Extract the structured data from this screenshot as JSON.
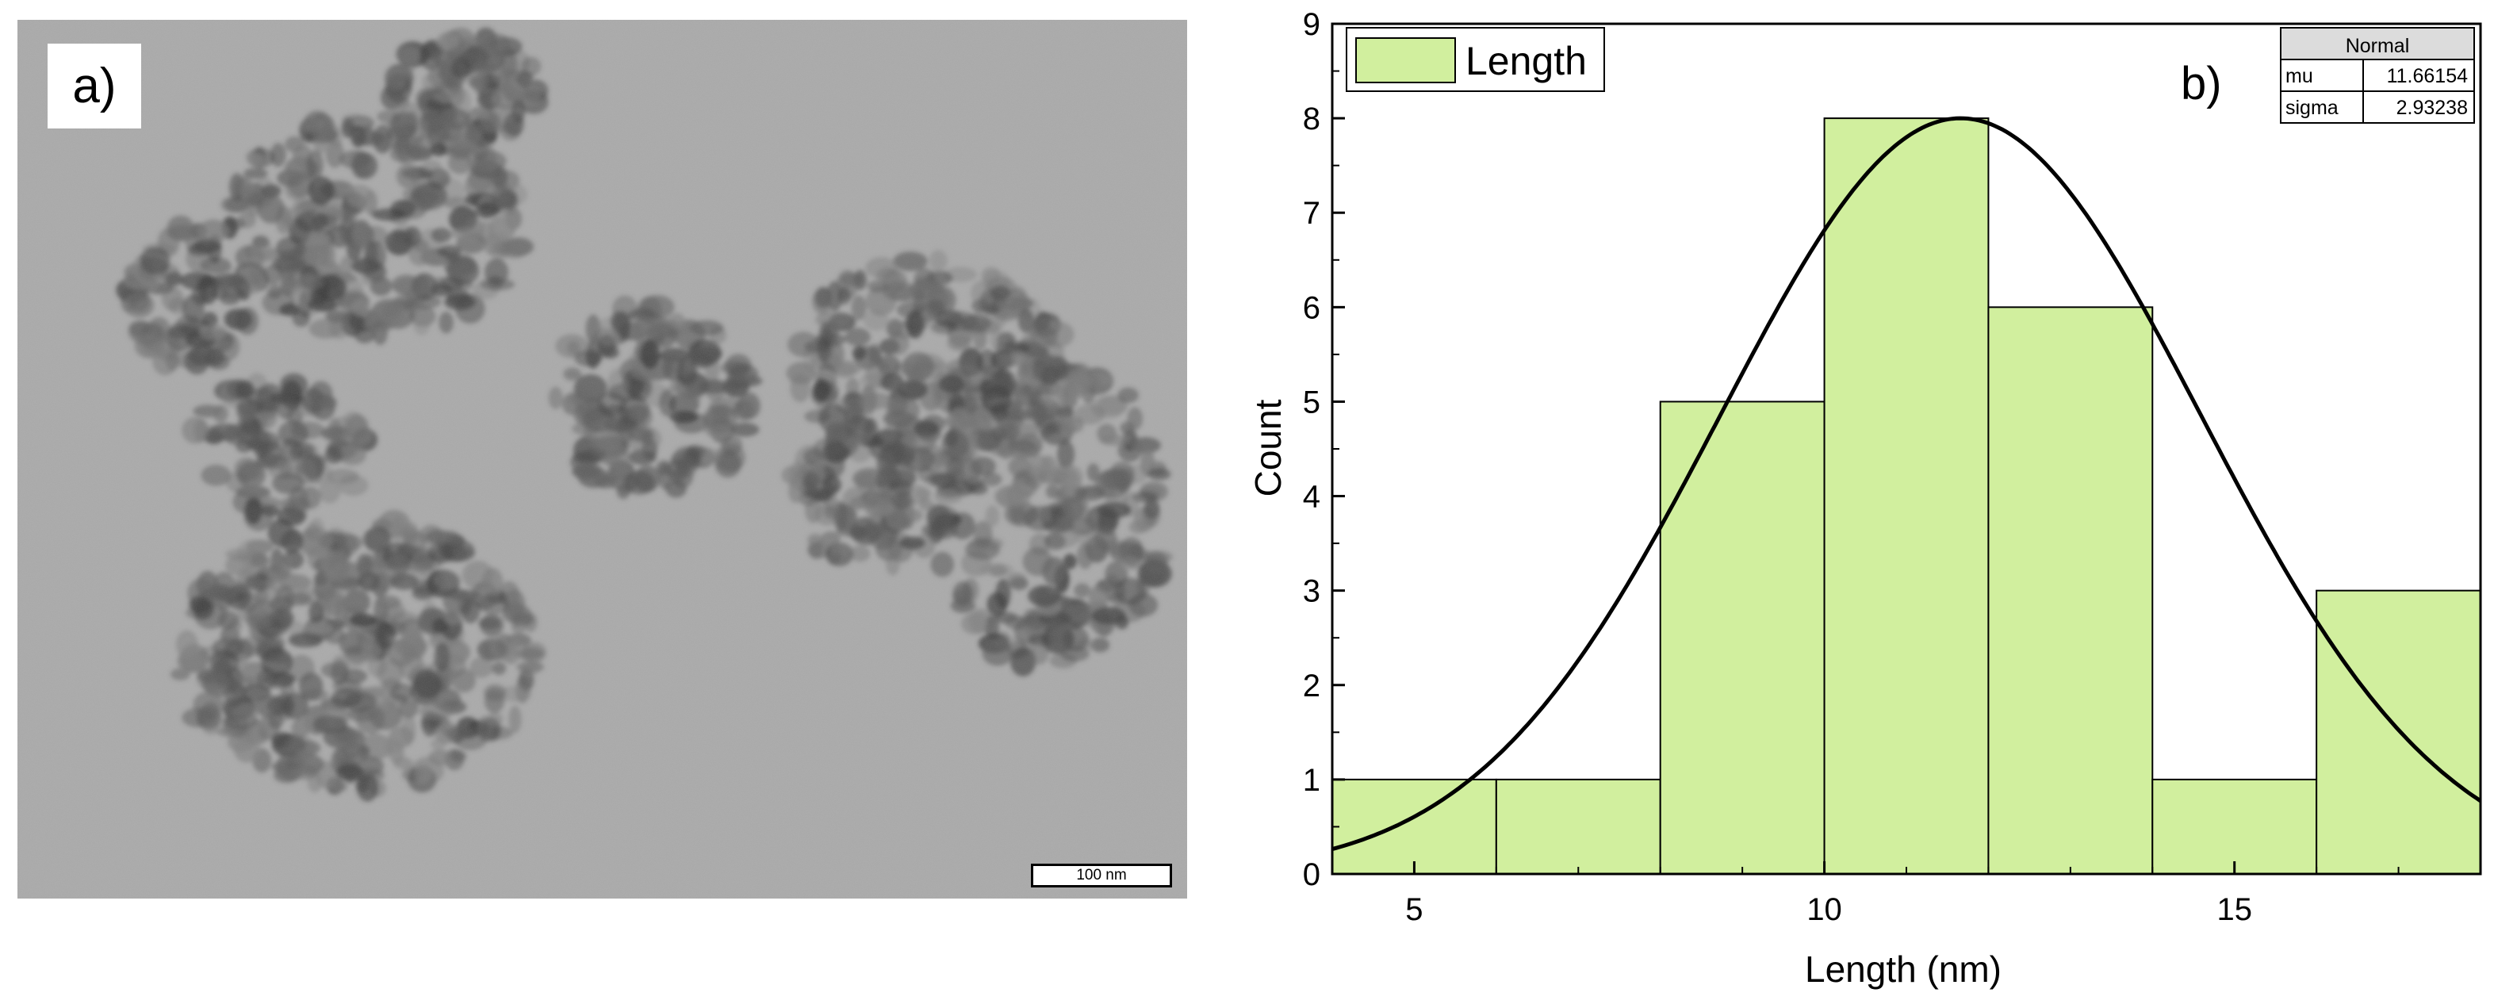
{
  "panel_a": {
    "label": "a)",
    "scale_bar": "100 nm"
  },
  "chart_data": {
    "type": "bar",
    "panel_label": "b)",
    "xlabel": "Length (nm)",
    "ylabel": "Count",
    "xlim": [
      4,
      18
    ],
    "ylim": [
      0,
      9
    ],
    "x_ticks": [
      5,
      10,
      15
    ],
    "y_ticks": [
      0,
      1,
      2,
      3,
      4,
      5,
      6,
      7,
      8,
      9
    ],
    "bins": [
      {
        "from": 4,
        "to": 6,
        "count": 1
      },
      {
        "from": 6,
        "to": 8,
        "count": 1
      },
      {
        "from": 8,
        "to": 10,
        "count": 5
      },
      {
        "from": 10,
        "to": 12,
        "count": 8
      },
      {
        "from": 12,
        "to": 14,
        "count": 6
      },
      {
        "from": 14,
        "to": 16,
        "count": 1
      },
      {
        "from": 16,
        "to": 18,
        "count": 3
      }
    ],
    "legend": {
      "label": "Length",
      "position": "top-left"
    },
    "fit": {
      "title": "Normal",
      "rows": [
        {
          "name": "mu",
          "value": "11.66154"
        },
        {
          "name": "sigma",
          "value": "2.93238"
        }
      ],
      "mu": 11.66154,
      "sigma": 2.93238,
      "peak": 8
    },
    "colors": {
      "bar_fill": "#d1ef9e",
      "bar_stroke": "#000000",
      "curve": "#000000"
    }
  }
}
